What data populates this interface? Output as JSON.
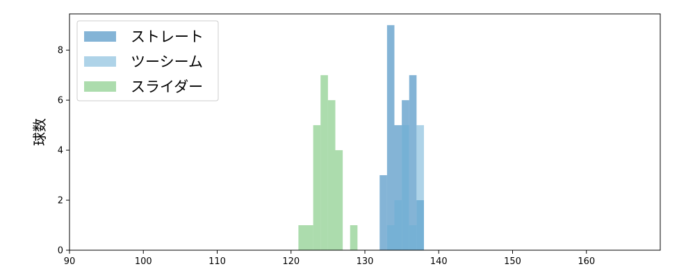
{
  "chart_data": {
    "type": "bar",
    "title": "",
    "xlabel": "",
    "ylabel": "球数",
    "xlim": [
      90,
      170
    ],
    "ylim": [
      0,
      9.45
    ],
    "xticks": [
      90,
      100,
      110,
      120,
      130,
      140,
      150,
      160
    ],
    "yticks": [
      0,
      2,
      4,
      6,
      8
    ],
    "bin_width": 1,
    "grid": false,
    "legend_position": "top-left",
    "series": [
      {
        "name": "ストレート",
        "color": "#1f77b4",
        "alpha": 0.55,
        "bins": [
          [
            132,
            3
          ],
          [
            133,
            9
          ],
          [
            134,
            5
          ],
          [
            135,
            6
          ],
          [
            136,
            7
          ],
          [
            137,
            2
          ]
        ]
      },
      {
        "name": "ツーシーム",
        "color": "#6baed6",
        "alpha": 0.55,
        "bins": [
          [
            133,
            1
          ],
          [
            134,
            2
          ],
          [
            135,
            5
          ],
          [
            136,
            1
          ],
          [
            137,
            5
          ]
        ]
      },
      {
        "name": "スライダー",
        "color": "#74c476",
        "alpha": 0.6,
        "bins": [
          [
            121,
            1
          ],
          [
            122,
            1
          ],
          [
            123,
            5
          ],
          [
            124,
            7
          ],
          [
            125,
            6
          ],
          [
            126,
            4
          ],
          [
            128,
            1
          ]
        ]
      }
    ]
  }
}
